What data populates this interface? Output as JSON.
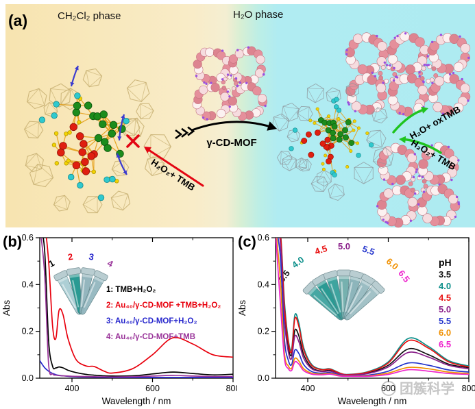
{
  "panel_a": {
    "label": "(a)",
    "left_phase": "CH₂Cl₂ phase",
    "right_phase": "H₂O phase",
    "mof_arrow_label": "γ-CD-MOF",
    "blocked_reaction": "H₂O₂+ TMB",
    "product_arrow": "H₂O+ oxTMB",
    "substrate_arrow": "H₂O₂+ TMB",
    "colors": {
      "organic_phase_bg": "#f8e6b6",
      "water_phase_bg": "#aeebf1",
      "mof_pink": "#e58f9b",
      "cluster_green": "#1c8c1c",
      "cluster_red": "#e01f10",
      "cluster_cyan": "#2fc9ce",
      "gold_bond": "#e6a11d",
      "blocked_arrow_red": "#e30613",
      "reaction_arrow_green": "#1fc41f",
      "transfer_arrow_black": "#000000"
    }
  },
  "chart_data": [
    {
      "panel_label": "(b)",
      "type": "line",
      "xlabel": "Wavelength / nm",
      "ylabel": "Abs",
      "xlim": [
        320,
        800
      ],
      "ylim": [
        0,
        0.6
      ],
      "xticks": [
        400,
        600,
        800
      ],
      "xtick_minor": [
        500,
        700
      ],
      "yticks": [
        0.0,
        0.2,
        0.4,
        0.6
      ],
      "ytick_labels": [
        "0.0",
        "0.2",
        "0.4",
        "0.6"
      ],
      "ytick_minor": [
        0.1,
        0.3,
        0.5
      ],
      "grid": false,
      "legend_position": "center-right",
      "x": [
        320,
        332,
        342,
        352,
        360,
        368,
        378,
        390,
        410,
        435,
        455,
        480,
        500,
        550,
        600,
        650,
        700,
        750,
        800
      ],
      "series": [
        {
          "name": "1: TMB+H₂O₂",
          "color": "#000000",
          "values": [
            0.65,
            0.55,
            0.16,
            0.05,
            0.044,
            0.048,
            0.044,
            0.034,
            0.024,
            0.016,
            0.013,
            0.01,
            0.009,
            0.01,
            0.018,
            0.026,
            0.02,
            0.014,
            0.017
          ]
        },
        {
          "name": "2: Au₄₀/γ-CD-MOF +TMB+H₂O₂",
          "color": "#e8000d",
          "values": [
            0.65,
            0.65,
            0.5,
            0.22,
            0.17,
            0.29,
            0.27,
            0.17,
            0.08,
            0.052,
            0.05,
            0.03,
            0.022,
            0.04,
            0.1,
            0.172,
            0.146,
            0.1,
            0.09
          ]
        },
        {
          "name": "3: Au₄₀/γ-CD-MOF+H₂O₂",
          "color": "#2525cc",
          "values": [
            0.075,
            0.045,
            0.03,
            0.02,
            0.015,
            0.012,
            0.01,
            0.008,
            0.006,
            0.005,
            0.004,
            0.004,
            0.003,
            0.003,
            0.003,
            0.003,
            0.003,
            0.003,
            0.003
          ]
        },
        {
          "name": "4: Au₄₀/γ-CD-MOF+TMB",
          "color": "#993399",
          "values": [
            0.65,
            0.45,
            0.06,
            0.018,
            0.013,
            0.011,
            0.01,
            0.009,
            0.008,
            0.007,
            0.006,
            0.006,
            0.005,
            0.006,
            0.009,
            0.012,
            0.009,
            0.007,
            0.007
          ]
        }
      ],
      "tubes": {
        "labels": [
          {
            "text": "1",
            "color": "#000000"
          },
          {
            "text": "2",
            "color": "#e8000d"
          },
          {
            "text": "3",
            "color": "#2525cc"
          },
          {
            "text": "4",
            "color": "#993399"
          }
        ],
        "fill_colors": [
          "#a9cdd3",
          "#1f958e",
          "#8fb3bb",
          "#93b7bf"
        ]
      }
    },
    {
      "panel_label": "(c)",
      "type": "line",
      "xlabel": "Wavelength / nm",
      "ylabel": "Abs",
      "xlim": [
        320,
        800
      ],
      "ylim": [
        0,
        0.6
      ],
      "xticks": [
        400,
        600,
        800
      ],
      "xtick_minor": [
        500,
        700
      ],
      "yticks": [
        0.0,
        0.2,
        0.4,
        0.6
      ],
      "ytick_labels": [
        "0.0",
        "0.2",
        "0.4",
        "0.6"
      ],
      "ytick_minor": [
        0.1,
        0.3,
        0.5
      ],
      "grid": false,
      "legend_title": "pH",
      "legend_position": "right",
      "x": [
        320,
        332,
        342,
        352,
        360,
        368,
        378,
        390,
        410,
        435,
        455,
        480,
        500,
        550,
        600,
        650,
        700,
        750,
        800
      ],
      "series": [
        {
          "name": "3.5",
          "color": "#111111",
          "values": [
            0.65,
            0.6,
            0.28,
            0.13,
            0.1,
            0.205,
            0.18,
            0.1,
            0.045,
            0.03,
            0.033,
            0.019,
            0.014,
            0.022,
            0.055,
            0.125,
            0.1,
            0.06,
            0.045
          ]
        },
        {
          "name": "4.0",
          "color": "#0b8f8a",
          "values": [
            0.65,
            0.63,
            0.33,
            0.16,
            0.125,
            0.27,
            0.235,
            0.13,
            0.058,
            0.038,
            0.04,
            0.022,
            0.016,
            0.028,
            0.07,
            0.17,
            0.135,
            0.075,
            0.052
          ]
        },
        {
          "name": "4.5",
          "color": "#e81010",
          "values": [
            0.65,
            0.62,
            0.31,
            0.15,
            0.115,
            0.255,
            0.22,
            0.12,
            0.054,
            0.036,
            0.038,
            0.021,
            0.015,
            0.026,
            0.065,
            0.16,
            0.128,
            0.07,
            0.048
          ]
        },
        {
          "name": "5.0",
          "color": "#8a1f8a",
          "values": [
            0.65,
            0.58,
            0.25,
            0.11,
            0.085,
            0.18,
            0.155,
            0.085,
            0.04,
            0.028,
            0.03,
            0.017,
            0.013,
            0.02,
            0.048,
            0.11,
            0.09,
            0.055,
            0.04
          ]
        },
        {
          "name": "5.5",
          "color": "#2233cc",
          "values": [
            0.65,
            0.52,
            0.17,
            0.075,
            0.058,
            0.12,
            0.105,
            0.058,
            0.028,
            0.021,
            0.024,
            0.013,
            0.01,
            0.013,
            0.03,
            0.065,
            0.055,
            0.035,
            0.026
          ]
        },
        {
          "name": "6.0",
          "color": "#f09000",
          "values": [
            0.65,
            0.42,
            0.11,
            0.052,
            0.042,
            0.085,
            0.073,
            0.04,
            0.021,
            0.017,
            0.02,
            0.011,
            0.009,
            0.01,
            0.022,
            0.046,
            0.04,
            0.026,
            0.02
          ]
        },
        {
          "name": "6.5",
          "color": "#ee22cc",
          "values": [
            0.62,
            0.32,
            0.085,
            0.04,
            0.033,
            0.07,
            0.06,
            0.032,
            0.017,
            0.014,
            0.017,
            0.009,
            0.008,
            0.008,
            0.016,
            0.036,
            0.03,
            0.02,
            0.016
          ]
        }
      ],
      "tubes": {
        "labels": [
          {
            "text": "3.5",
            "color": "#111111"
          },
          {
            "text": "4.0",
            "color": "#0b8f8a"
          },
          {
            "text": "4.5",
            "color": "#e81010"
          },
          {
            "text": "5.0",
            "color": "#8a1f8a"
          },
          {
            "text": "5.5",
            "color": "#2233cc"
          },
          {
            "text": "6.0",
            "color": "#f09000"
          },
          {
            "text": "6.5",
            "color": "#ee22cc"
          }
        ],
        "fill_colors": [
          "#3da39f",
          "#1f958e",
          "#35a09a",
          "#6fadab",
          "#87b2b8",
          "#96bac0",
          "#9fbfc5"
        ]
      }
    }
  ],
  "watermark": {
    "text": "团簇科学"
  }
}
